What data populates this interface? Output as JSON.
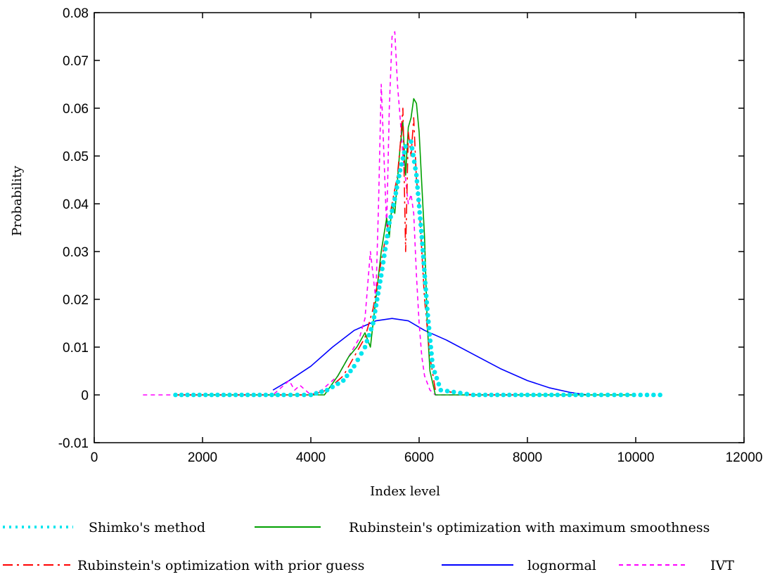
{
  "chart_data": {
    "type": "line",
    "title": "",
    "xlabel": "Index level",
    "ylabel": "Probability",
    "xlim": [
      0,
      12000
    ],
    "ylim": [
      -0.01,
      0.08
    ],
    "x_ticks": [
      0,
      2000,
      4000,
      6000,
      8000,
      10000,
      12000
    ],
    "x_tick_labels": [
      "0",
      "2000",
      "4000",
      "6000",
      "8000",
      "10000",
      "12000"
    ],
    "y_ticks": [
      -0.01,
      0,
      0.01,
      0.02,
      0.03,
      0.04,
      0.05,
      0.06,
      0.07,
      0.08
    ],
    "y_tick_labels": [
      "-0.01",
      "0",
      "0.01",
      "0.02",
      "0.03",
      "0.04",
      "0.05",
      "0.06",
      "0.07",
      "0.08"
    ],
    "grid": false,
    "legend_position": "below",
    "series": [
      {
        "name": "Shimko's method",
        "color": "#00e5ee",
        "style": "dotted",
        "x": [
          1500,
          2500,
          3500,
          4000,
          4300,
          4600,
          4800,
          5000,
          5150,
          5300,
          5450,
          5550,
          5650,
          5750,
          5850,
          5950,
          6050,
          6150,
          6250,
          6400,
          7000,
          8000,
          9000,
          10450
        ],
        "y": [
          0,
          0,
          0,
          0,
          0.001,
          0.003,
          0.006,
          0.01,
          0.015,
          0.025,
          0.036,
          0.041,
          0.047,
          0.052,
          0.053,
          0.046,
          0.033,
          0.018,
          0.006,
          0.001,
          0,
          0,
          0,
          0
        ]
      },
      {
        "name": "Rubinstein's optimization with maximum smoothness",
        "color": "#00a000",
        "style": "solid",
        "x": [
          1500,
          3000,
          4000,
          4250,
          4500,
          4700,
          4850,
          5000,
          5100,
          5200,
          5300,
          5400,
          5450,
          5500,
          5550,
          5600,
          5650,
          5700,
          5750,
          5800,
          5850,
          5900,
          5950,
          6000,
          6050,
          6100,
          6150,
          6200,
          6300,
          7000,
          8000,
          10000
        ],
        "y": [
          0,
          0,
          0,
          0,
          0.004,
          0.008,
          0.01,
          0.013,
          0.01,
          0.02,
          0.03,
          0.037,
          0.033,
          0.04,
          0.038,
          0.045,
          0.052,
          0.057,
          0.046,
          0.056,
          0.058,
          0.062,
          0.061,
          0.055,
          0.044,
          0.033,
          0.015,
          0.005,
          0,
          0,
          0,
          0
        ]
      },
      {
        "name": "Rubinstein's optimization with prior guess",
        "color": "#ff0000",
        "style": "dashdot",
        "x": [
          1500,
          3500,
          4000,
          4300,
          4600,
          4800,
          5000,
          5150,
          5300,
          5400,
          5500,
          5600,
          5650,
          5700,
          5750,
          5800,
          5850,
          5900,
          5950,
          6000,
          6050,
          6100,
          6200,
          6300,
          7000,
          8000
        ],
        "y": [
          0,
          0,
          0,
          0.001,
          0.004,
          0.008,
          0.012,
          0.018,
          0.028,
          0.034,
          0.04,
          0.046,
          0.052,
          0.06,
          0.03,
          0.055,
          0.05,
          0.058,
          0.045,
          0.04,
          0.03,
          0.02,
          0.008,
          0.001,
          0,
          0
        ]
      },
      {
        "name": "lognormal",
        "color": "#0000ff",
        "style": "solid",
        "x": [
          3300,
          3600,
          4000,
          4400,
          4800,
          5200,
          5500,
          5800,
          6100,
          6500,
          7000,
          7500,
          8000,
          8400,
          8800,
          9100
        ],
        "y": [
          0.001,
          0.003,
          0.006,
          0.01,
          0.0135,
          0.0155,
          0.016,
          0.0155,
          0.0135,
          0.0115,
          0.0085,
          0.0055,
          0.003,
          0.0015,
          0.0005,
          0
        ]
      },
      {
        "name": "IVT",
        "color": "#ff00ff",
        "style": "dashed",
        "x": [
          900,
          2000,
          3300,
          3500,
          3600,
          3700,
          3800,
          4000,
          4200,
          4300,
          4500,
          4700,
          4900,
          5000,
          5100,
          5200,
          5250,
          5300,
          5350,
          5400,
          5450,
          5500,
          5550,
          5600,
          5650,
          5700,
          5750,
          5800,
          5850,
          5900,
          5950,
          6000,
          6050,
          6100,
          6200,
          6300,
          7000,
          8000
        ],
        "y": [
          0,
          0,
          0,
          0.002,
          0.003,
          0.001,
          0.002,
          0,
          0.001,
          0.002,
          0.004,
          0.008,
          0.012,
          0.016,
          0.03,
          0.02,
          0.04,
          0.065,
          0.05,
          0.035,
          0.06,
          0.075,
          0.076,
          0.065,
          0.058,
          0.05,
          0.045,
          0.04,
          0.042,
          0.038,
          0.025,
          0.015,
          0.008,
          0.004,
          0.001,
          0,
          0,
          0
        ]
      }
    ]
  }
}
